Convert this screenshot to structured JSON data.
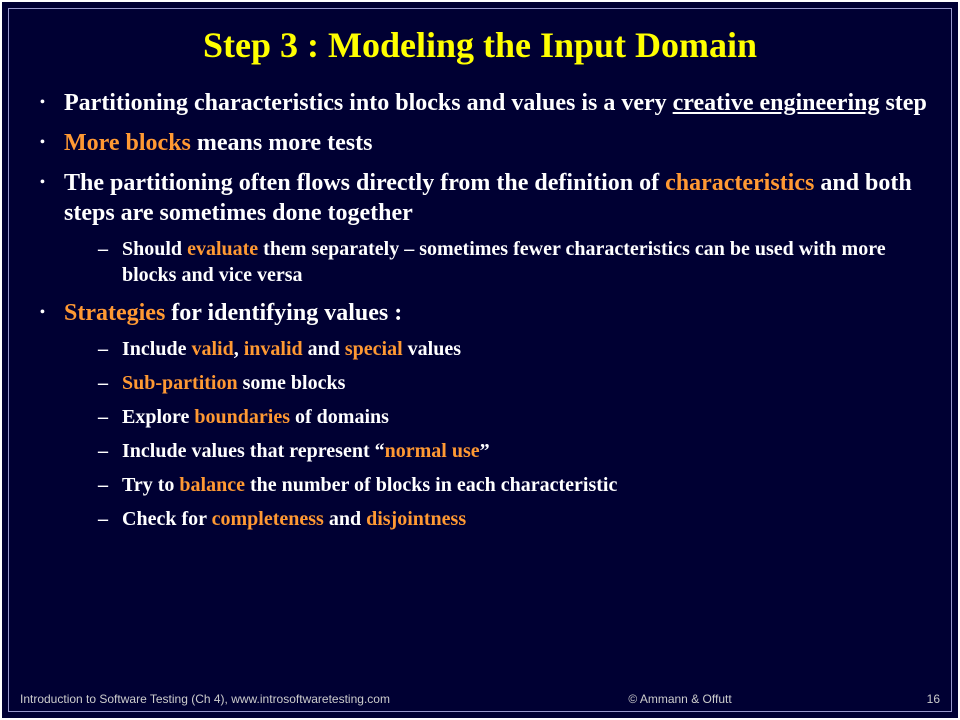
{
  "colors": {
    "background": "#000033",
    "title": "#ffff00",
    "body_text": "#ffffff",
    "highlight": "#ff9933",
    "border_outer": "#ffffff",
    "border_inner": "#9999cc",
    "footer_text": "#cccccc"
  },
  "typography": {
    "title_fontsize": 36,
    "bullet_fontsize": 24,
    "sub_bullet_fontsize": 20,
    "footer_fontsize": 12,
    "title_font": "Times New Roman",
    "body_font": "Times New Roman",
    "footer_font": "Arial"
  },
  "title": "Step 3 : Modeling the Input Domain",
  "bullets": {
    "b1": {
      "pre": "Partitioning characteristics into blocks and values is a very ",
      "underlined": "creative engineering",
      "post": " step"
    },
    "b2": {
      "hl": "More blocks",
      "post": " means more tests"
    },
    "b3": {
      "pre": "The partitioning often flows directly from the definition of ",
      "hl": "characteristics",
      "post": " and both steps are sometimes done together",
      "sub1_pre": "Should ",
      "sub1_hl": "evaluate",
      "sub1_post": " them separately – sometimes fewer characteristics can be used with more blocks and vice versa"
    },
    "b4": {
      "hl": "Strategies",
      "post": " for identifying values :",
      "s1_pre": "Include ",
      "s1_hl1": "valid",
      "s1_mid1": ", ",
      "s1_hl2": "invalid",
      "s1_mid2": " and ",
      "s1_hl3": "special",
      "s1_post": " values",
      "s2_hl": "Sub-partition",
      "s2_post": " some blocks",
      "s3_pre": "Explore ",
      "s3_hl": "boundaries",
      "s3_post": " of domains",
      "s4_pre": "Include values that represent “",
      "s4_hl": "normal use",
      "s4_post": "”",
      "s5_pre": "Try to ",
      "s5_hl": "balance",
      "s5_post": " the number of blocks in each characteristic",
      "s6_pre": "Check for ",
      "s6_hl1": "completeness",
      "s6_mid": " and ",
      "s6_hl2": "disjointness"
    }
  },
  "footer": {
    "left": "Introduction to Software Testing (Ch 4), www.introsoftwaretesting.com",
    "center": "© Ammann & Offutt",
    "page": "16"
  }
}
